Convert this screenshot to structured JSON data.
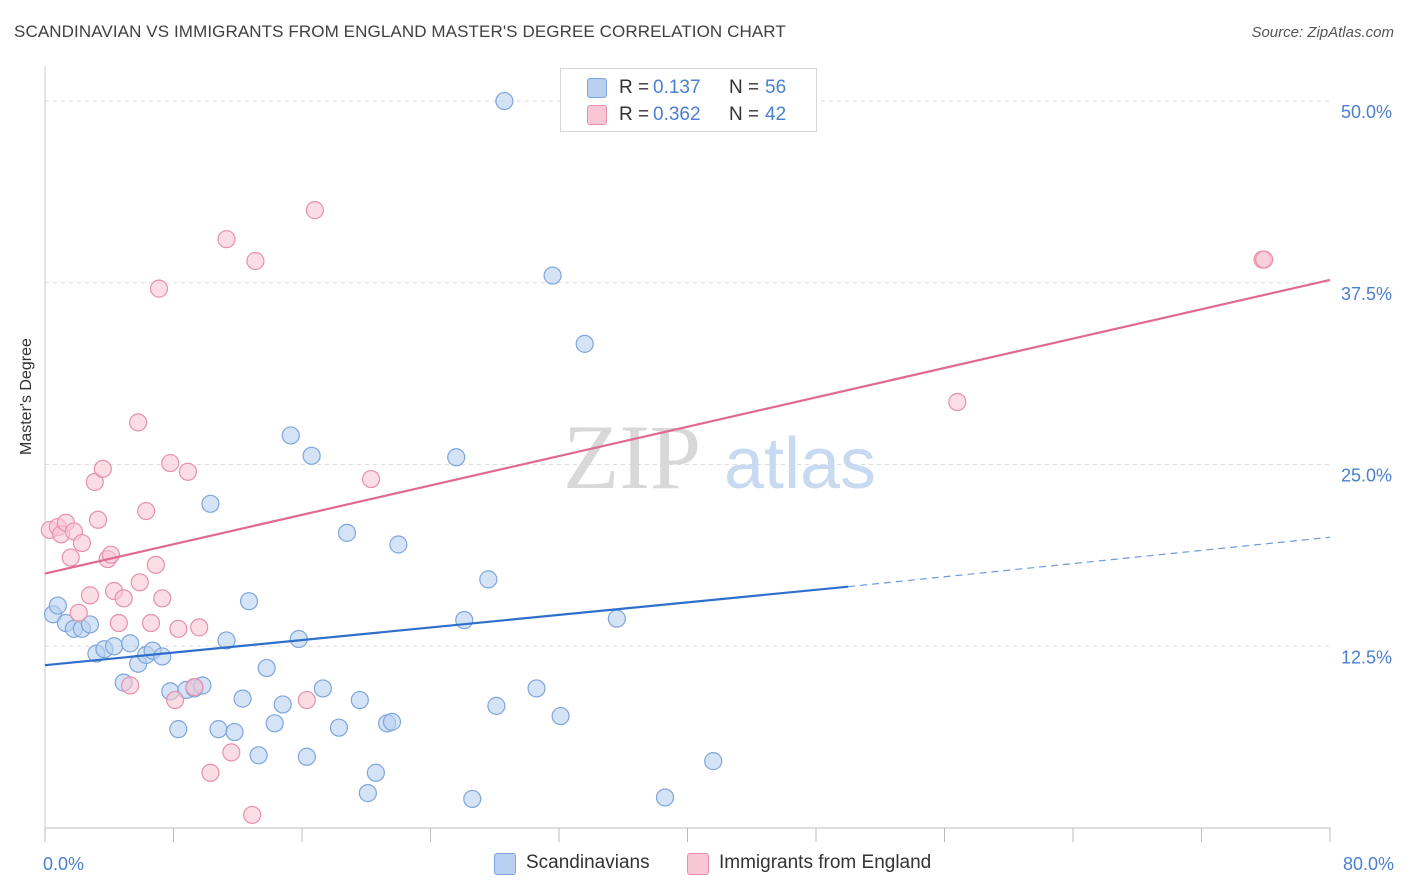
{
  "title": "SCANDINAVIAN VS IMMIGRANTS FROM ENGLAND MASTER'S DEGREE CORRELATION CHART",
  "source": "Source: ZipAtlas.com",
  "watermark": {
    "zip": "ZIP",
    "atlas": "atlas"
  },
  "colors": {
    "blue_fill": "#b8d0f0",
    "blue_stroke": "#7ea6dc",
    "blue_line": "#2f6fcc",
    "pink_fill": "#f8c6d4",
    "pink_stroke": "#e890aa",
    "pink_line": "#e06a90",
    "tick_label": "#4a7fd0",
    "grid": "#dddddd"
  },
  "legend": {
    "rows": [
      {
        "r_label": "R =",
        "r_value": "0.137",
        "n_label": "N =",
        "n_value": "56"
      },
      {
        "r_label": "R =",
        "r_value": "0.362",
        "n_label": "N =",
        "n_value": "42"
      }
    ]
  },
  "bottom_legend": {
    "series1": "Scandinavians",
    "series2": "Immigrants from England"
  },
  "chart_data": {
    "type": "scatter",
    "title": "SCANDINAVIAN VS IMMIGRANTS FROM ENGLAND MASTER'S DEGREE CORRELATION CHART",
    "xlabel": "",
    "ylabel": "Master's Degree",
    "xlim": [
      0,
      80
    ],
    "ylim": [
      0,
      52
    ],
    "x_tick_labels": [
      "0.0%",
      "80.0%"
    ],
    "y_ticks": [
      12.5,
      25.0,
      37.5,
      50.0
    ],
    "y_tick_labels": [
      "12.5%",
      "25.0%",
      "37.5%",
      "50.0%"
    ],
    "grid": true,
    "legend_position": "top-center",
    "series": [
      {
        "name": "Scandinavians",
        "points": [
          [
            0.5,
            14.7
          ],
          [
            0.8,
            15.3
          ],
          [
            1.3,
            14.1
          ],
          [
            1.8,
            13.7
          ],
          [
            2.3,
            13.7
          ],
          [
            2.8,
            14.0
          ],
          [
            3.2,
            12.0
          ],
          [
            3.7,
            12.3
          ],
          [
            4.3,
            12.5
          ],
          [
            4.9,
            10.0
          ],
          [
            5.3,
            12.7
          ],
          [
            5.8,
            11.3
          ],
          [
            6.3,
            11.9
          ],
          [
            6.7,
            12.2
          ],
          [
            7.3,
            11.8
          ],
          [
            7.8,
            9.4
          ],
          [
            8.3,
            6.8
          ],
          [
            8.8,
            9.5
          ],
          [
            9.3,
            9.6
          ],
          [
            9.8,
            9.8
          ],
          [
            10.3,
            22.3
          ],
          [
            10.8,
            6.8
          ],
          [
            11.3,
            12.9
          ],
          [
            11.8,
            6.6
          ],
          [
            12.3,
            8.9
          ],
          [
            12.7,
            15.6
          ],
          [
            13.3,
            5.0
          ],
          [
            13.8,
            11.0
          ],
          [
            14.3,
            7.2
          ],
          [
            14.8,
            8.5
          ],
          [
            15.3,
            27.0
          ],
          [
            15.8,
            13.0
          ],
          [
            16.3,
            4.9
          ],
          [
            16.6,
            25.6
          ],
          [
            17.3,
            9.6
          ],
          [
            18.3,
            6.9
          ],
          [
            18.8,
            20.3
          ],
          [
            19.6,
            8.8
          ],
          [
            20.1,
            2.4
          ],
          [
            20.6,
            3.8
          ],
          [
            21.3,
            7.2
          ],
          [
            21.6,
            7.3
          ],
          [
            22.0,
            19.5
          ],
          [
            25.6,
            25.5
          ],
          [
            26.1,
            14.3
          ],
          [
            26.6,
            2.0
          ],
          [
            27.6,
            17.1
          ],
          [
            28.1,
            8.4
          ],
          [
            28.6,
            50.0
          ],
          [
            30.6,
            9.6
          ],
          [
            31.6,
            38.0
          ],
          [
            32.1,
            7.7
          ],
          [
            33.6,
            33.3
          ],
          [
            35.6,
            14.4
          ],
          [
            38.6,
            2.1
          ],
          [
            41.6,
            4.6
          ]
        ]
      },
      {
        "name": "Immigrants from England",
        "points": [
          [
            0.3,
            20.5
          ],
          [
            0.8,
            20.7
          ],
          [
            1.0,
            20.2
          ],
          [
            1.3,
            21.0
          ],
          [
            1.6,
            18.6
          ],
          [
            1.8,
            20.4
          ],
          [
            2.1,
            14.8
          ],
          [
            2.3,
            19.6
          ],
          [
            2.8,
            16.0
          ],
          [
            3.1,
            23.8
          ],
          [
            3.3,
            21.2
          ],
          [
            3.6,
            24.7
          ],
          [
            3.9,
            18.5
          ],
          [
            4.1,
            18.8
          ],
          [
            4.3,
            16.3
          ],
          [
            4.6,
            14.1
          ],
          [
            4.9,
            15.8
          ],
          [
            5.3,
            9.8
          ],
          [
            5.8,
            27.9
          ],
          [
            5.9,
            16.9
          ],
          [
            6.3,
            21.8
          ],
          [
            6.6,
            14.1
          ],
          [
            6.9,
            18.1
          ],
          [
            7.1,
            37.1
          ],
          [
            7.3,
            15.8
          ],
          [
            7.8,
            25.1
          ],
          [
            8.1,
            8.8
          ],
          [
            8.3,
            13.7
          ],
          [
            8.9,
            24.5
          ],
          [
            9.3,
            9.7
          ],
          [
            9.6,
            13.8
          ],
          [
            10.3,
            3.8
          ],
          [
            11.3,
            40.5
          ],
          [
            11.6,
            5.2
          ],
          [
            12.9,
            0.9
          ],
          [
            13.1,
            39.0
          ],
          [
            16.3,
            8.8
          ],
          [
            16.8,
            42.5
          ],
          [
            20.3,
            24.0
          ],
          [
            56.8,
            29.3
          ],
          [
            75.8,
            39.1
          ],
          [
            75.9,
            39.1
          ]
        ]
      }
    ],
    "trend_lines": [
      {
        "name": "Scandinavians",
        "solid": [
          [
            0,
            11.2
          ],
          [
            50,
            16.6
          ]
        ],
        "dashed": [
          [
            50,
            16.6
          ],
          [
            80,
            20.0
          ]
        ]
      },
      {
        "name": "Immigrants from England",
        "solid": [
          [
            0,
            17.5
          ],
          [
            80,
            37.7
          ]
        ]
      }
    ]
  }
}
